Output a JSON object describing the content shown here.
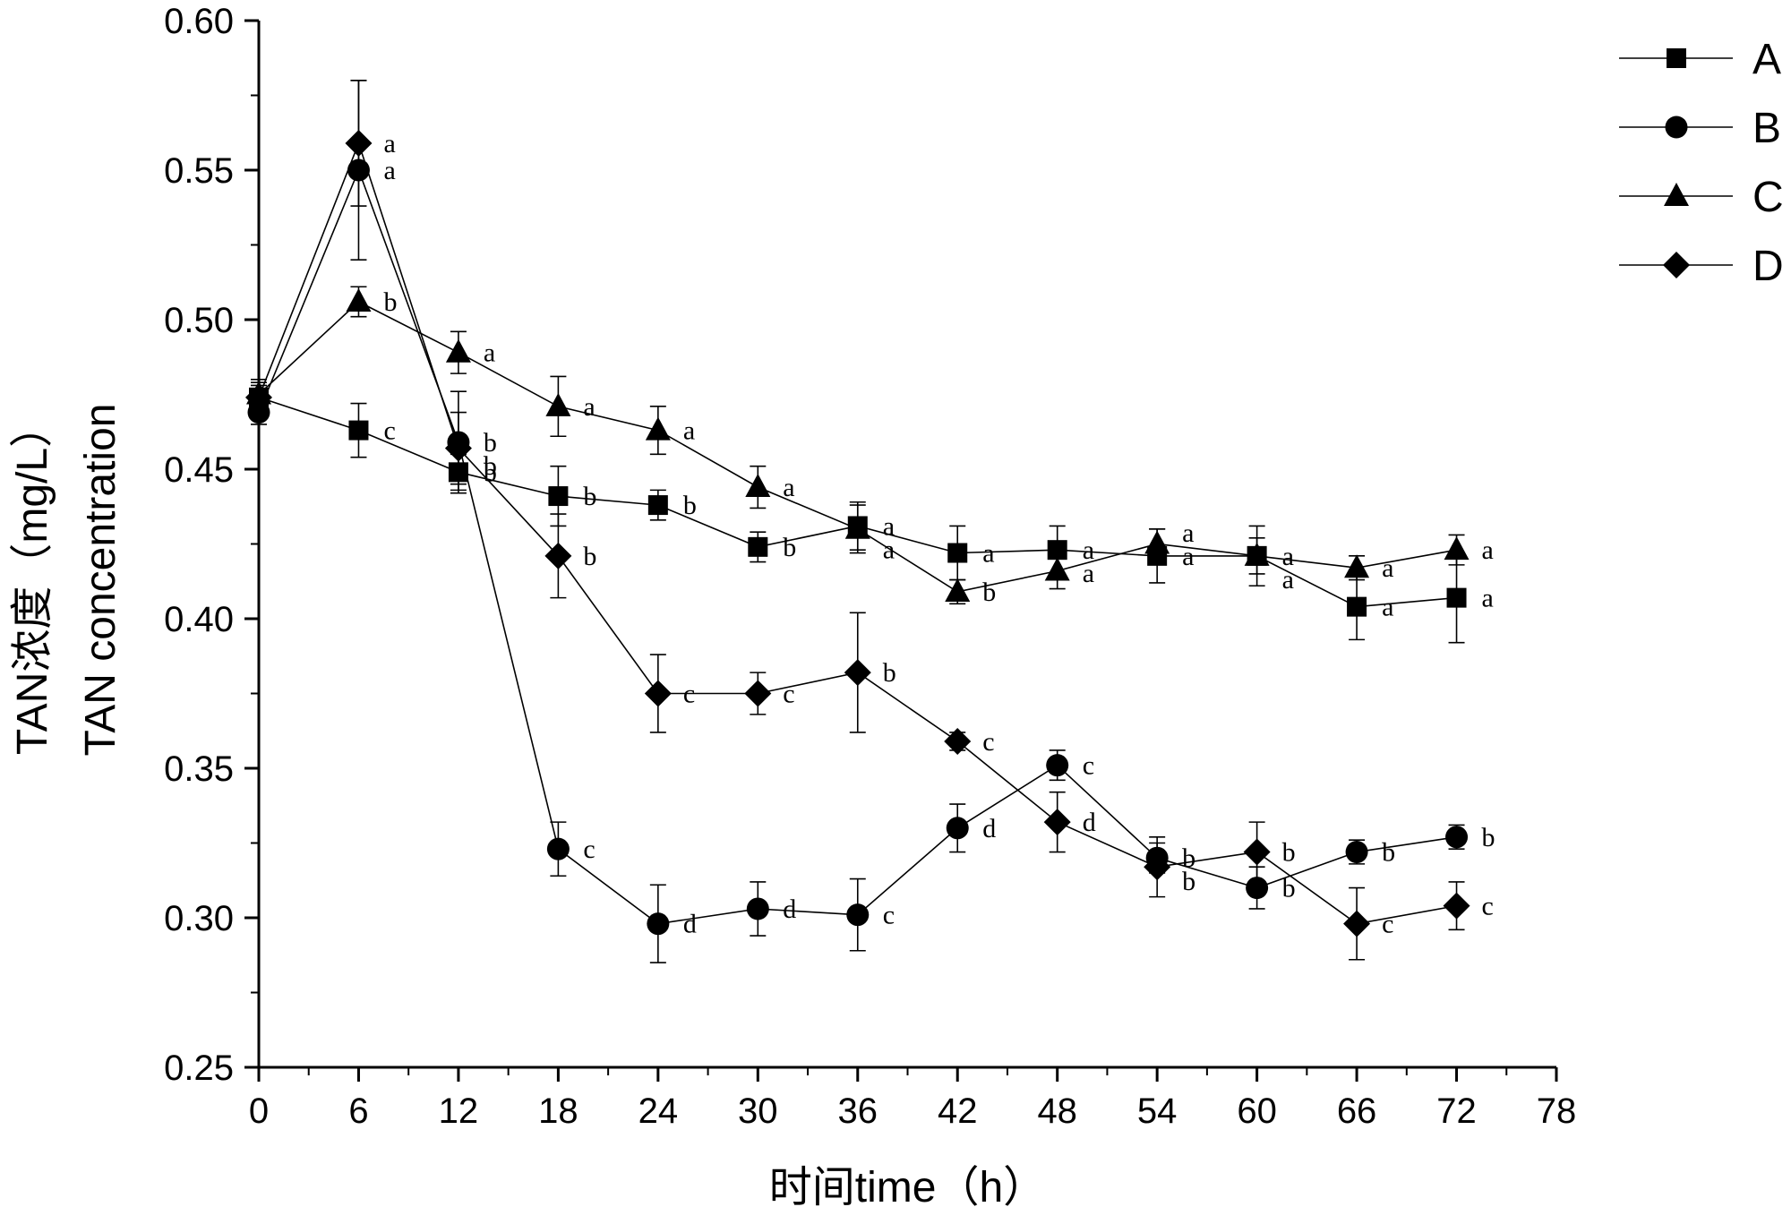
{
  "chart_data": {
    "type": "line",
    "title": "",
    "xlabel": "时间time（h）",
    "ylabel_line1": "TAN浓度（mg/L）",
    "ylabel_line2": "TAN concentration",
    "x": [
      0,
      6,
      12,
      18,
      24,
      30,
      36,
      42,
      48,
      54,
      60,
      66,
      72
    ],
    "xlim": [
      0,
      78
    ],
    "ylim": [
      0.25,
      0.6
    ],
    "xticks": [
      "0",
      "6",
      "12",
      "18",
      "24",
      "30",
      "36",
      "42",
      "48",
      "54",
      "60",
      "66",
      "72",
      "78"
    ],
    "yticks": [
      "0.25",
      "0.30",
      "0.35",
      "0.40",
      "0.45",
      "0.50",
      "0.55",
      "0.60"
    ],
    "legend_position": "top-right",
    "series": [
      {
        "name": "A",
        "marker": "square",
        "values": [
          0.474,
          0.463,
          0.449,
          0.441,
          0.438,
          0.424,
          0.431,
          0.422,
          0.423,
          0.421,
          0.421,
          0.404,
          0.407
        ],
        "errors": [
          0.004,
          0.009,
          0.006,
          0.01,
          0.005,
          0.005,
          0.008,
          0.009,
          0.008,
          0.009,
          0.01,
          0.011,
          0.015
        ],
        "labels": [
          "",
          "c",
          "b",
          "b",
          "b",
          "b",
          "a",
          "a",
          "a",
          "a",
          "a",
          "a",
          "a"
        ]
      },
      {
        "name": "B",
        "marker": "circle",
        "values": [
          0.469,
          0.55,
          0.459,
          0.323,
          0.298,
          0.303,
          0.301,
          0.33,
          0.351,
          0.32,
          0.31,
          0.322,
          0.327
        ],
        "errors": [
          0.004,
          0.03,
          0.017,
          0.009,
          0.013,
          0.009,
          0.012,
          0.008,
          0.005,
          0.005,
          0.007,
          0.004,
          0.004
        ],
        "labels": [
          "",
          "a",
          "b",
          "c",
          "d",
          "d",
          "c",
          "d",
          "c",
          "b",
          "b",
          "b",
          "b"
        ]
      },
      {
        "name": "C",
        "marker": "triangle",
        "values": [
          0.475,
          0.506,
          0.489,
          0.471,
          0.463,
          0.444,
          0.43,
          0.409,
          0.416,
          0.425,
          0.421,
          0.417,
          0.423
        ],
        "errors": [
          0.005,
          0.005,
          0.007,
          0.01,
          0.008,
          0.007,
          0.008,
          0.004,
          0.006,
          0.005,
          0.006,
          0.004,
          0.005
        ],
        "labels": [
          "",
          "b",
          "a",
          "a",
          "a",
          "a",
          "a",
          "b",
          "a",
          "a",
          "a",
          "a",
          "a"
        ]
      },
      {
        "name": "D",
        "marker": "diamond",
        "values": [
          0.474,
          0.559,
          0.457,
          0.421,
          0.375,
          0.375,
          0.382,
          0.359,
          0.332,
          0.317,
          0.322,
          0.298,
          0.304
        ],
        "errors": [
          0.005,
          0.021,
          0.012,
          0.014,
          0.013,
          0.007,
          0.02,
          0.003,
          0.01,
          0.01,
          0.01,
          0.012,
          0.008
        ],
        "labels": [
          "",
          "a",
          "b",
          "b",
          "c",
          "c",
          "b",
          "c",
          "d",
          "b",
          "b",
          "c",
          "c"
        ]
      }
    ]
  }
}
